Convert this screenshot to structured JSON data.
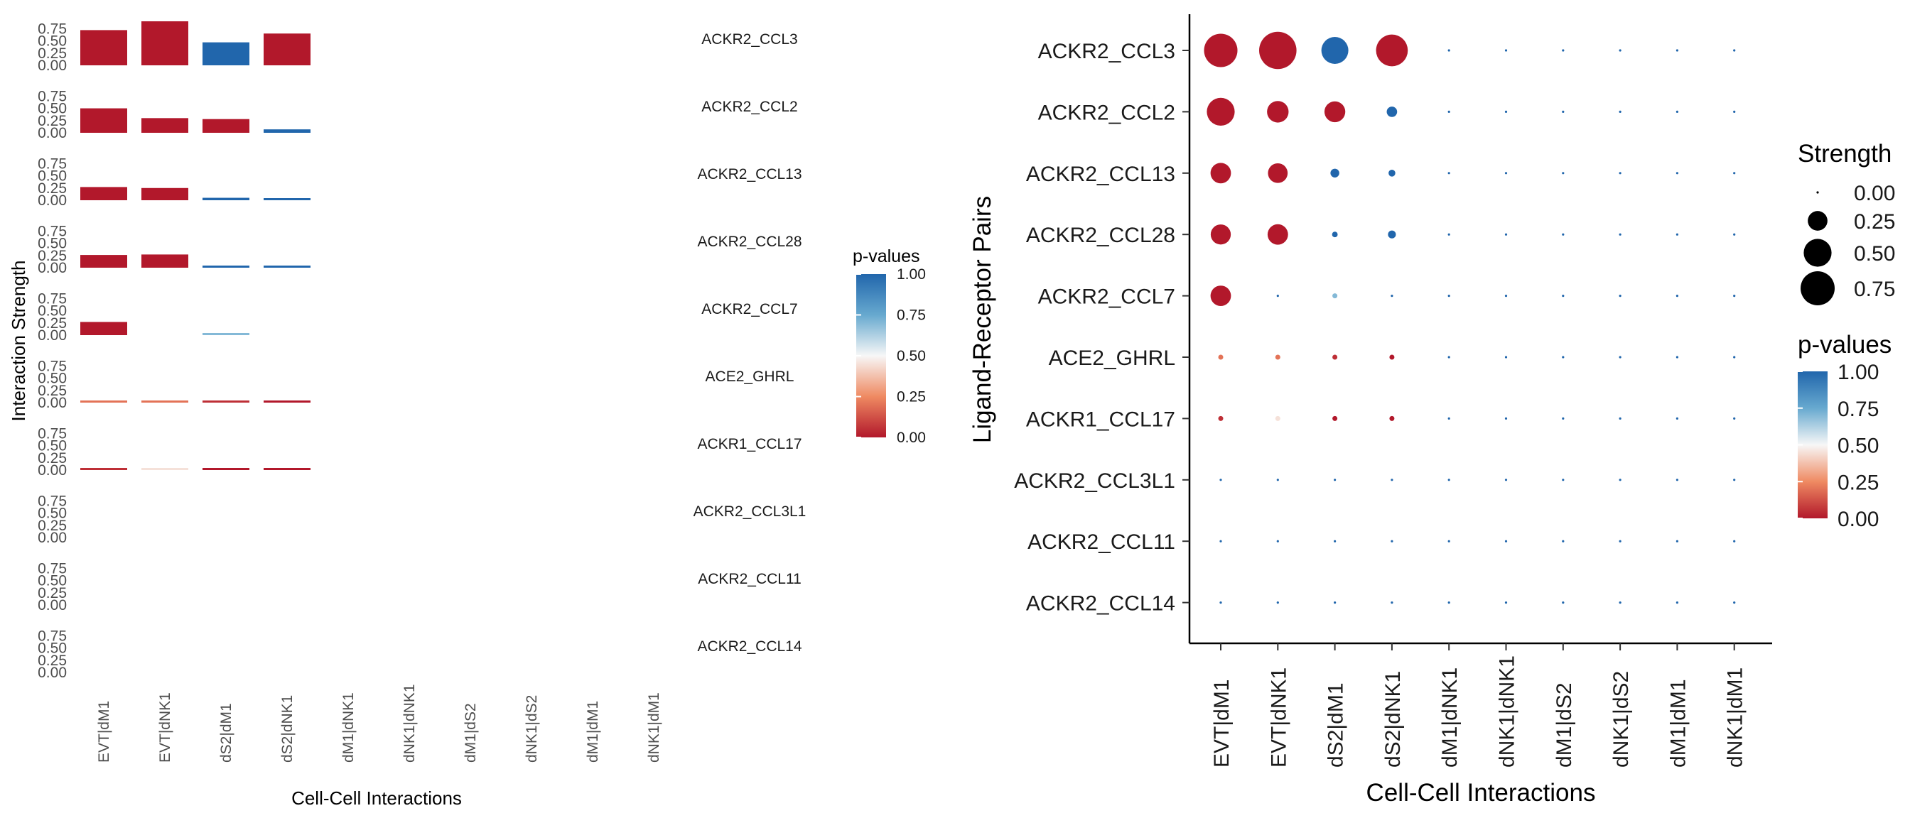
{
  "chart_data": [
    {
      "type": "bar",
      "panel": "faceted bars",
      "xlabel": "Cell-Cell Interactions",
      "ylabel": "Interaction Strength",
      "ylim": [
        0,
        0.9
      ],
      "y_ticks": [
        "0.00",
        "0.25",
        "0.50",
        "0.75"
      ],
      "categories": [
        "EVT|dM1",
        "EVT|dNK1",
        "dS2|dM1",
        "dS2|dNK1",
        "dM1|dNK1",
        "dNK1|dNK1",
        "dM1|dS2",
        "dNK1|dS2",
        "dM1|dM1",
        "dNK1|dM1"
      ],
      "facets": [
        {
          "pair": "ACKR2_CCL3",
          "strength": [
            0.72,
            0.9,
            0.47,
            0.65,
            0,
            0,
            0,
            0,
            0,
            0
          ],
          "pvalue": [
            0.0,
            0.0,
            1.0,
            0.0,
            null,
            null,
            null,
            null,
            null,
            null
          ]
        },
        {
          "pair": "ACKR2_CCL2",
          "strength": [
            0.5,
            0.3,
            0.28,
            0.07,
            0,
            0,
            0,
            0,
            0,
            0
          ],
          "pvalue": [
            0.0,
            0.0,
            0.0,
            1.0,
            null,
            null,
            null,
            null,
            null,
            null
          ]
        },
        {
          "pair": "ACKR2_CCL13",
          "strength": [
            0.27,
            0.25,
            0.05,
            0.03,
            0,
            0,
            0,
            0,
            0,
            0
          ],
          "pvalue": [
            0.0,
            0.0,
            1.0,
            1.0,
            null,
            null,
            null,
            null,
            null,
            null
          ]
        },
        {
          "pair": "ACKR2_CCL28",
          "strength": [
            0.26,
            0.27,
            0.02,
            0.04,
            0,
            0,
            0,
            0,
            0,
            0
          ],
          "pvalue": [
            0.0,
            0.0,
            1.0,
            1.0,
            null,
            null,
            null,
            null,
            null,
            null
          ]
        },
        {
          "pair": "ACKR2_CCL7",
          "strength": [
            0.27,
            0,
            0.01,
            0,
            0,
            0,
            0,
            0,
            0,
            0
          ],
          "pvalue": [
            0.0,
            null,
            0.7,
            null,
            null,
            null,
            null,
            null,
            null,
            null
          ]
        },
        {
          "pair": "ACE2_GHRL",
          "strength": [
            0.005,
            0.005,
            0.005,
            0.005,
            0,
            0,
            0,
            0,
            0,
            0
          ],
          "pvalue": [
            0.2,
            0.2,
            0.05,
            0.0,
            null,
            null,
            null,
            null,
            null,
            null
          ]
        },
        {
          "pair": "ACKR1_CCL17",
          "strength": [
            0.005,
            0.005,
            0.005,
            0.005,
            0,
            0,
            0,
            0,
            0,
            0
          ],
          "pvalue": [
            0.05,
            0.45,
            0.0,
            0.0,
            null,
            null,
            null,
            null,
            null,
            null
          ]
        },
        {
          "pair": "ACKR2_CCL3L1",
          "strength": [
            0,
            0,
            0,
            0,
            0,
            0,
            0,
            0,
            0,
            0
          ],
          "pvalue": [
            null,
            null,
            null,
            null,
            null,
            null,
            null,
            null,
            null,
            null
          ]
        },
        {
          "pair": "ACKR2_CCL11",
          "strength": [
            0,
            0,
            0,
            0,
            0,
            0,
            0,
            0,
            0,
            0
          ],
          "pvalue": [
            null,
            null,
            null,
            null,
            null,
            null,
            null,
            null,
            null,
            null
          ]
        },
        {
          "pair": "ACKR2_CCL14",
          "strength": [
            0,
            0,
            0,
            0,
            0,
            0,
            0,
            0,
            0,
            0
          ],
          "pvalue": [
            null,
            null,
            null,
            null,
            null,
            null,
            null,
            null,
            null,
            null
          ]
        }
      ],
      "legend": {
        "title": "p-values",
        "ticks": [
          "1.00",
          "0.75",
          "0.50",
          "0.25",
          "0.00"
        ],
        "placement": "right"
      }
    },
    {
      "type": "scatter",
      "panel": "dot plot",
      "xlabel": "Cell-Cell Interactions",
      "ylabel": "Ligand-Receptor Pairs",
      "categories": [
        "EVT|dM1",
        "EVT|dNK1",
        "dS2|dM1",
        "dS2|dNK1",
        "dM1|dNK1",
        "dNK1|dNK1",
        "dM1|dS2",
        "dNK1|dS2",
        "dM1|dM1",
        "dNK1|dM1"
      ],
      "pairs": [
        "ACKR2_CCL3",
        "ACKR2_CCL2",
        "ACKR2_CCL13",
        "ACKR2_CCL28",
        "ACKR2_CCL7",
        "ACE2_GHRL",
        "ACKR1_CCL17",
        "ACKR2_CCL3L1",
        "ACKR2_CCL11",
        "ACKR2_CCL14"
      ],
      "strength": [
        [
          0.72,
          0.9,
          0.47,
          0.65,
          0,
          0,
          0,
          0,
          0,
          0
        ],
        [
          0.5,
          0.3,
          0.28,
          0.07,
          0,
          0,
          0,
          0,
          0,
          0
        ],
        [
          0.27,
          0.25,
          0.05,
          0.03,
          0,
          0,
          0,
          0,
          0,
          0
        ],
        [
          0.26,
          0.27,
          0.02,
          0.04,
          0,
          0,
          0,
          0,
          0,
          0
        ],
        [
          0.27,
          0,
          0.01,
          0,
          0,
          0,
          0,
          0,
          0,
          0
        ],
        [
          0.005,
          0.005,
          0.005,
          0.005,
          0,
          0,
          0,
          0,
          0,
          0
        ],
        [
          0.005,
          0.005,
          0.005,
          0.005,
          0,
          0,
          0,
          0,
          0,
          0
        ],
        [
          0,
          0,
          0,
          0,
          0,
          0,
          0,
          0,
          0,
          0
        ],
        [
          0,
          0,
          0,
          0,
          0,
          0,
          0,
          0,
          0,
          0
        ],
        [
          0,
          0,
          0,
          0,
          0,
          0,
          0,
          0,
          0,
          0
        ]
      ],
      "pvalue": [
        [
          0.0,
          0.0,
          1.0,
          0.0,
          1.0,
          1.0,
          1.0,
          1.0,
          1.0,
          1.0
        ],
        [
          0.0,
          0.0,
          0.0,
          1.0,
          1.0,
          1.0,
          1.0,
          1.0,
          1.0,
          1.0
        ],
        [
          0.0,
          0.0,
          1.0,
          1.0,
          1.0,
          1.0,
          1.0,
          1.0,
          1.0,
          1.0
        ],
        [
          0.0,
          0.0,
          1.0,
          1.0,
          1.0,
          1.0,
          1.0,
          1.0,
          1.0,
          1.0
        ],
        [
          0.0,
          1.0,
          0.7,
          1.0,
          1.0,
          1.0,
          1.0,
          1.0,
          1.0,
          1.0
        ],
        [
          0.2,
          0.2,
          0.05,
          0.0,
          1.0,
          1.0,
          1.0,
          1.0,
          1.0,
          1.0
        ],
        [
          0.05,
          0.45,
          0.0,
          0.0,
          1.0,
          1.0,
          1.0,
          1.0,
          1.0,
          1.0
        ],
        [
          1.0,
          1.0,
          1.0,
          1.0,
          1.0,
          1.0,
          1.0,
          1.0,
          1.0,
          1.0
        ],
        [
          1.0,
          1.0,
          1.0,
          1.0,
          1.0,
          1.0,
          1.0,
          1.0,
          1.0,
          1.0
        ],
        [
          1.0,
          1.0,
          1.0,
          1.0,
          1.0,
          1.0,
          1.0,
          1.0,
          1.0,
          1.0
        ]
      ],
      "legend_strength": {
        "title": "Strength",
        "values": [
          0.0,
          0.25,
          0.5,
          0.75
        ],
        "labels": [
          "0.00",
          "0.25",
          "0.50",
          "0.75"
        ]
      },
      "legend_pvalue": {
        "title": "p-values",
        "ticks": [
          "1.00",
          "0.75",
          "0.50",
          "0.25",
          "0.00"
        ],
        "placement": "right"
      }
    }
  ],
  "colors": {
    "low": "#b2182b",
    "midlow": "#ef8a62",
    "mid": "#f7f7f7",
    "midhigh": "#67a9cf",
    "high": "#2166ac"
  }
}
